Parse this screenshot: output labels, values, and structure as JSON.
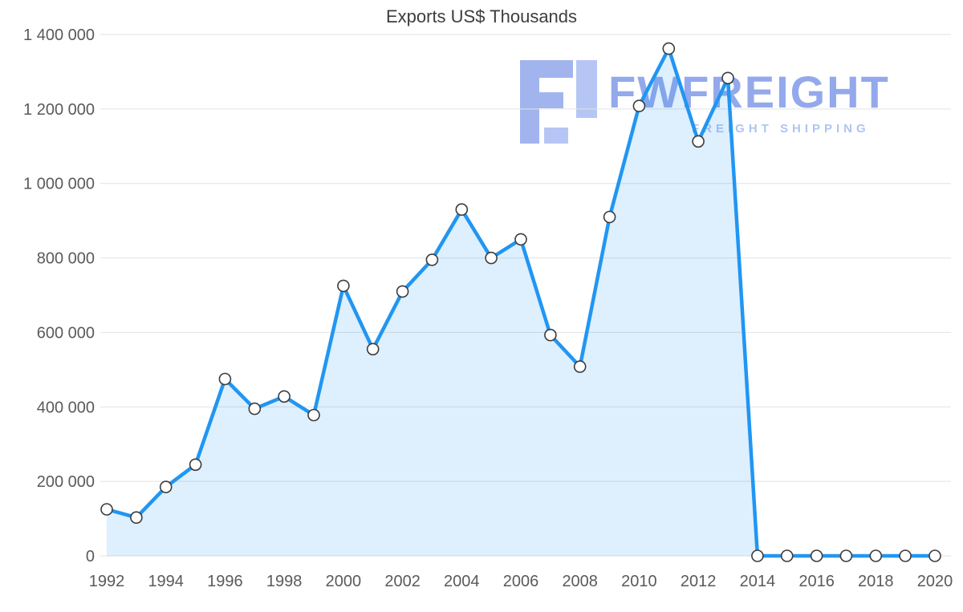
{
  "title": "Exports US$ Thousands",
  "watermark": {
    "brand": "FWFREIGHT",
    "tagline": "FREIGHT SHIPPING"
  },
  "chart_data": {
    "type": "area",
    "title": "Exports US$ Thousands",
    "x": [
      1992,
      1993,
      1994,
      1995,
      1996,
      1997,
      1998,
      1999,
      2000,
      2001,
      2002,
      2003,
      2004,
      2005,
      2006,
      2007,
      2008,
      2009,
      2010,
      2011,
      2012,
      2013,
      2014,
      2015,
      2016,
      2017,
      2018,
      2019,
      2020
    ],
    "series": [
      {
        "name": "Exports US$ Thousands",
        "values": [
          125000,
          103000,
          185000,
          245000,
          475000,
          395000,
          428000,
          378000,
          725000,
          555000,
          710000,
          795000,
          930000,
          800000,
          850000,
          593000,
          508000,
          910000,
          1208000,
          1362000,
          1113000,
          1283000,
          0,
          0,
          0,
          0,
          0,
          0,
          0
        ]
      }
    ],
    "xlabel": "",
    "ylabel": "",
    "ylim": [
      0,
      1400000
    ],
    "ytick_step": 200000,
    "xtick_step": 2,
    "ytick_labels": [
      "0",
      "200 000",
      "400 000",
      "600 000",
      "800 000",
      "1 000 000",
      "1 200 000",
      "1 400 000"
    ],
    "xtick_labels": [
      "1992",
      "1994",
      "1996",
      "1998",
      "2000",
      "2002",
      "2004",
      "2006",
      "2008",
      "2010",
      "2012",
      "2014",
      "2016",
      "2018",
      "2020"
    ],
    "grid": true,
    "legend": false,
    "marker": "circle",
    "colors": {
      "line": "#2196f3",
      "fill": "#2196f3",
      "fill_opacity": "0.15",
      "marker_fill": "#ffffff",
      "marker_stroke": "#3c3c3c",
      "grid": "#e2e2e2",
      "axis_text": "#5a5a5a",
      "title_text": "#3d3d3d",
      "watermark_main": "#8fa5ea",
      "watermark_light": "#b3c4f4"
    }
  }
}
